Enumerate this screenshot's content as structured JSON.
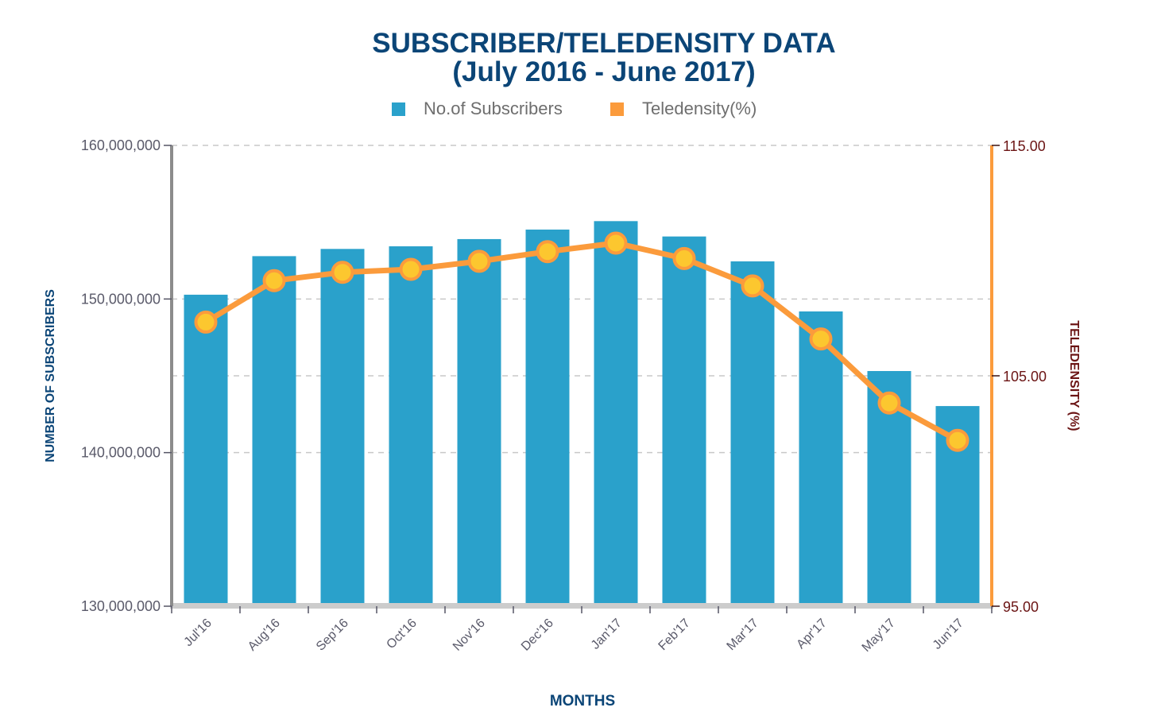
{
  "chart_data": {
    "type": "bar+line",
    "title": "SUBSCRIBER/TELEDENSITY DATA",
    "subtitle": "(July 2016 - June 2017)",
    "xlabel": "MONTHS",
    "ylabel": "NUMBER OF SUBSCRIBERS",
    "y2label": "TELEDENSITY (%)",
    "categories": [
      "Jul'16",
      "Aug'16",
      "Sep'16",
      "Oct'16",
      "Nov'16",
      "Dec'16",
      "Jan'17",
      "Feb'17",
      "Mar'17",
      "Apr'17",
      "May'17",
      "Jun'17"
    ],
    "ylim": [
      130000000,
      160000000
    ],
    "y_ticks": [
      130000000,
      140000000,
      150000000,
      160000000
    ],
    "y_tick_labels": [
      "130,000,000",
      "140,000,000",
      "150,000,000",
      "160,000,000"
    ],
    "y2lim": [
      95,
      115
    ],
    "y2_ticks": [
      95,
      105,
      115
    ],
    "y2_tick_labels": [
      "95.00",
      "105.00",
      "115.00"
    ],
    "grid": true,
    "legend_position": "top-center",
    "series": [
      {
        "name": "No.of Subscribers",
        "type": "bar",
        "axis": "left",
        "color": "#2aa1cb",
        "values": [
          150280000,
          152790000,
          153260000,
          153430000,
          153900000,
          154520000,
          155070000,
          154070000,
          152450000,
          149190000,
          145310000,
          143030000
        ]
      },
      {
        "name": "Teledensity(%)",
        "type": "line",
        "axis": "right",
        "color": "#fb9b3c",
        "marker_fill": "#fcc72f",
        "values": [
          107.33,
          109.13,
          109.49,
          109.62,
          109.97,
          110.39,
          110.76,
          110.09,
          108.9,
          106.6,
          103.82,
          102.2
        ]
      }
    ]
  },
  "colors": {
    "title": "#0b4577",
    "axis_left": "#8c8c8c",
    "axis_right": "#fb9b3c",
    "right_text": "#6b1414",
    "grid": "#c8c8c8",
    "baseline": "#cccccc"
  }
}
